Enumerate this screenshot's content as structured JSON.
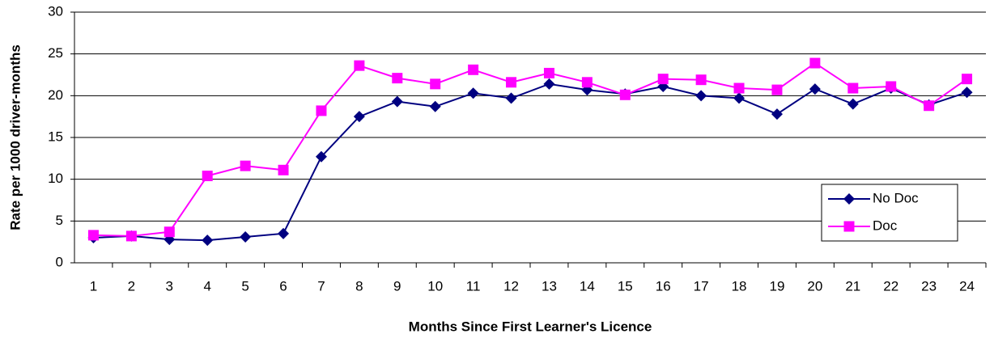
{
  "chart_data": {
    "type": "line",
    "x_label": "Months Since First Learner's Licence",
    "y_label": "Rate per 1000 driver-months",
    "categories": [
      1,
      2,
      3,
      4,
      5,
      6,
      7,
      8,
      9,
      10,
      11,
      12,
      13,
      14,
      15,
      16,
      17,
      18,
      19,
      20,
      21,
      22,
      23,
      24
    ],
    "series": [
      {
        "name": "No Doc",
        "color": "#000080",
        "marker": "diamond",
        "values": [
          3.0,
          3.2,
          2.8,
          2.7,
          3.1,
          3.5,
          12.7,
          17.5,
          19.3,
          18.7,
          20.3,
          19.7,
          21.4,
          20.7,
          20.2,
          21.1,
          20.0,
          19.7,
          17.8,
          20.8,
          19.0,
          20.9,
          18.9,
          20.4
        ]
      },
      {
        "name": "Doc",
        "color": "#ff00ff",
        "marker": "square",
        "values": [
          3.3,
          3.2,
          3.7,
          10.4,
          11.6,
          11.1,
          18.2,
          23.6,
          22.1,
          21.4,
          23.1,
          21.6,
          22.7,
          21.6,
          20.1,
          22.0,
          21.9,
          20.9,
          20.7,
          23.9,
          20.9,
          21.1,
          18.8,
          22.0
        ]
      }
    ],
    "ylim": [
      0,
      30
    ],
    "yticks": [
      0,
      5,
      10,
      15,
      20,
      25,
      30
    ],
    "grid": true,
    "legend": "lower right"
  }
}
